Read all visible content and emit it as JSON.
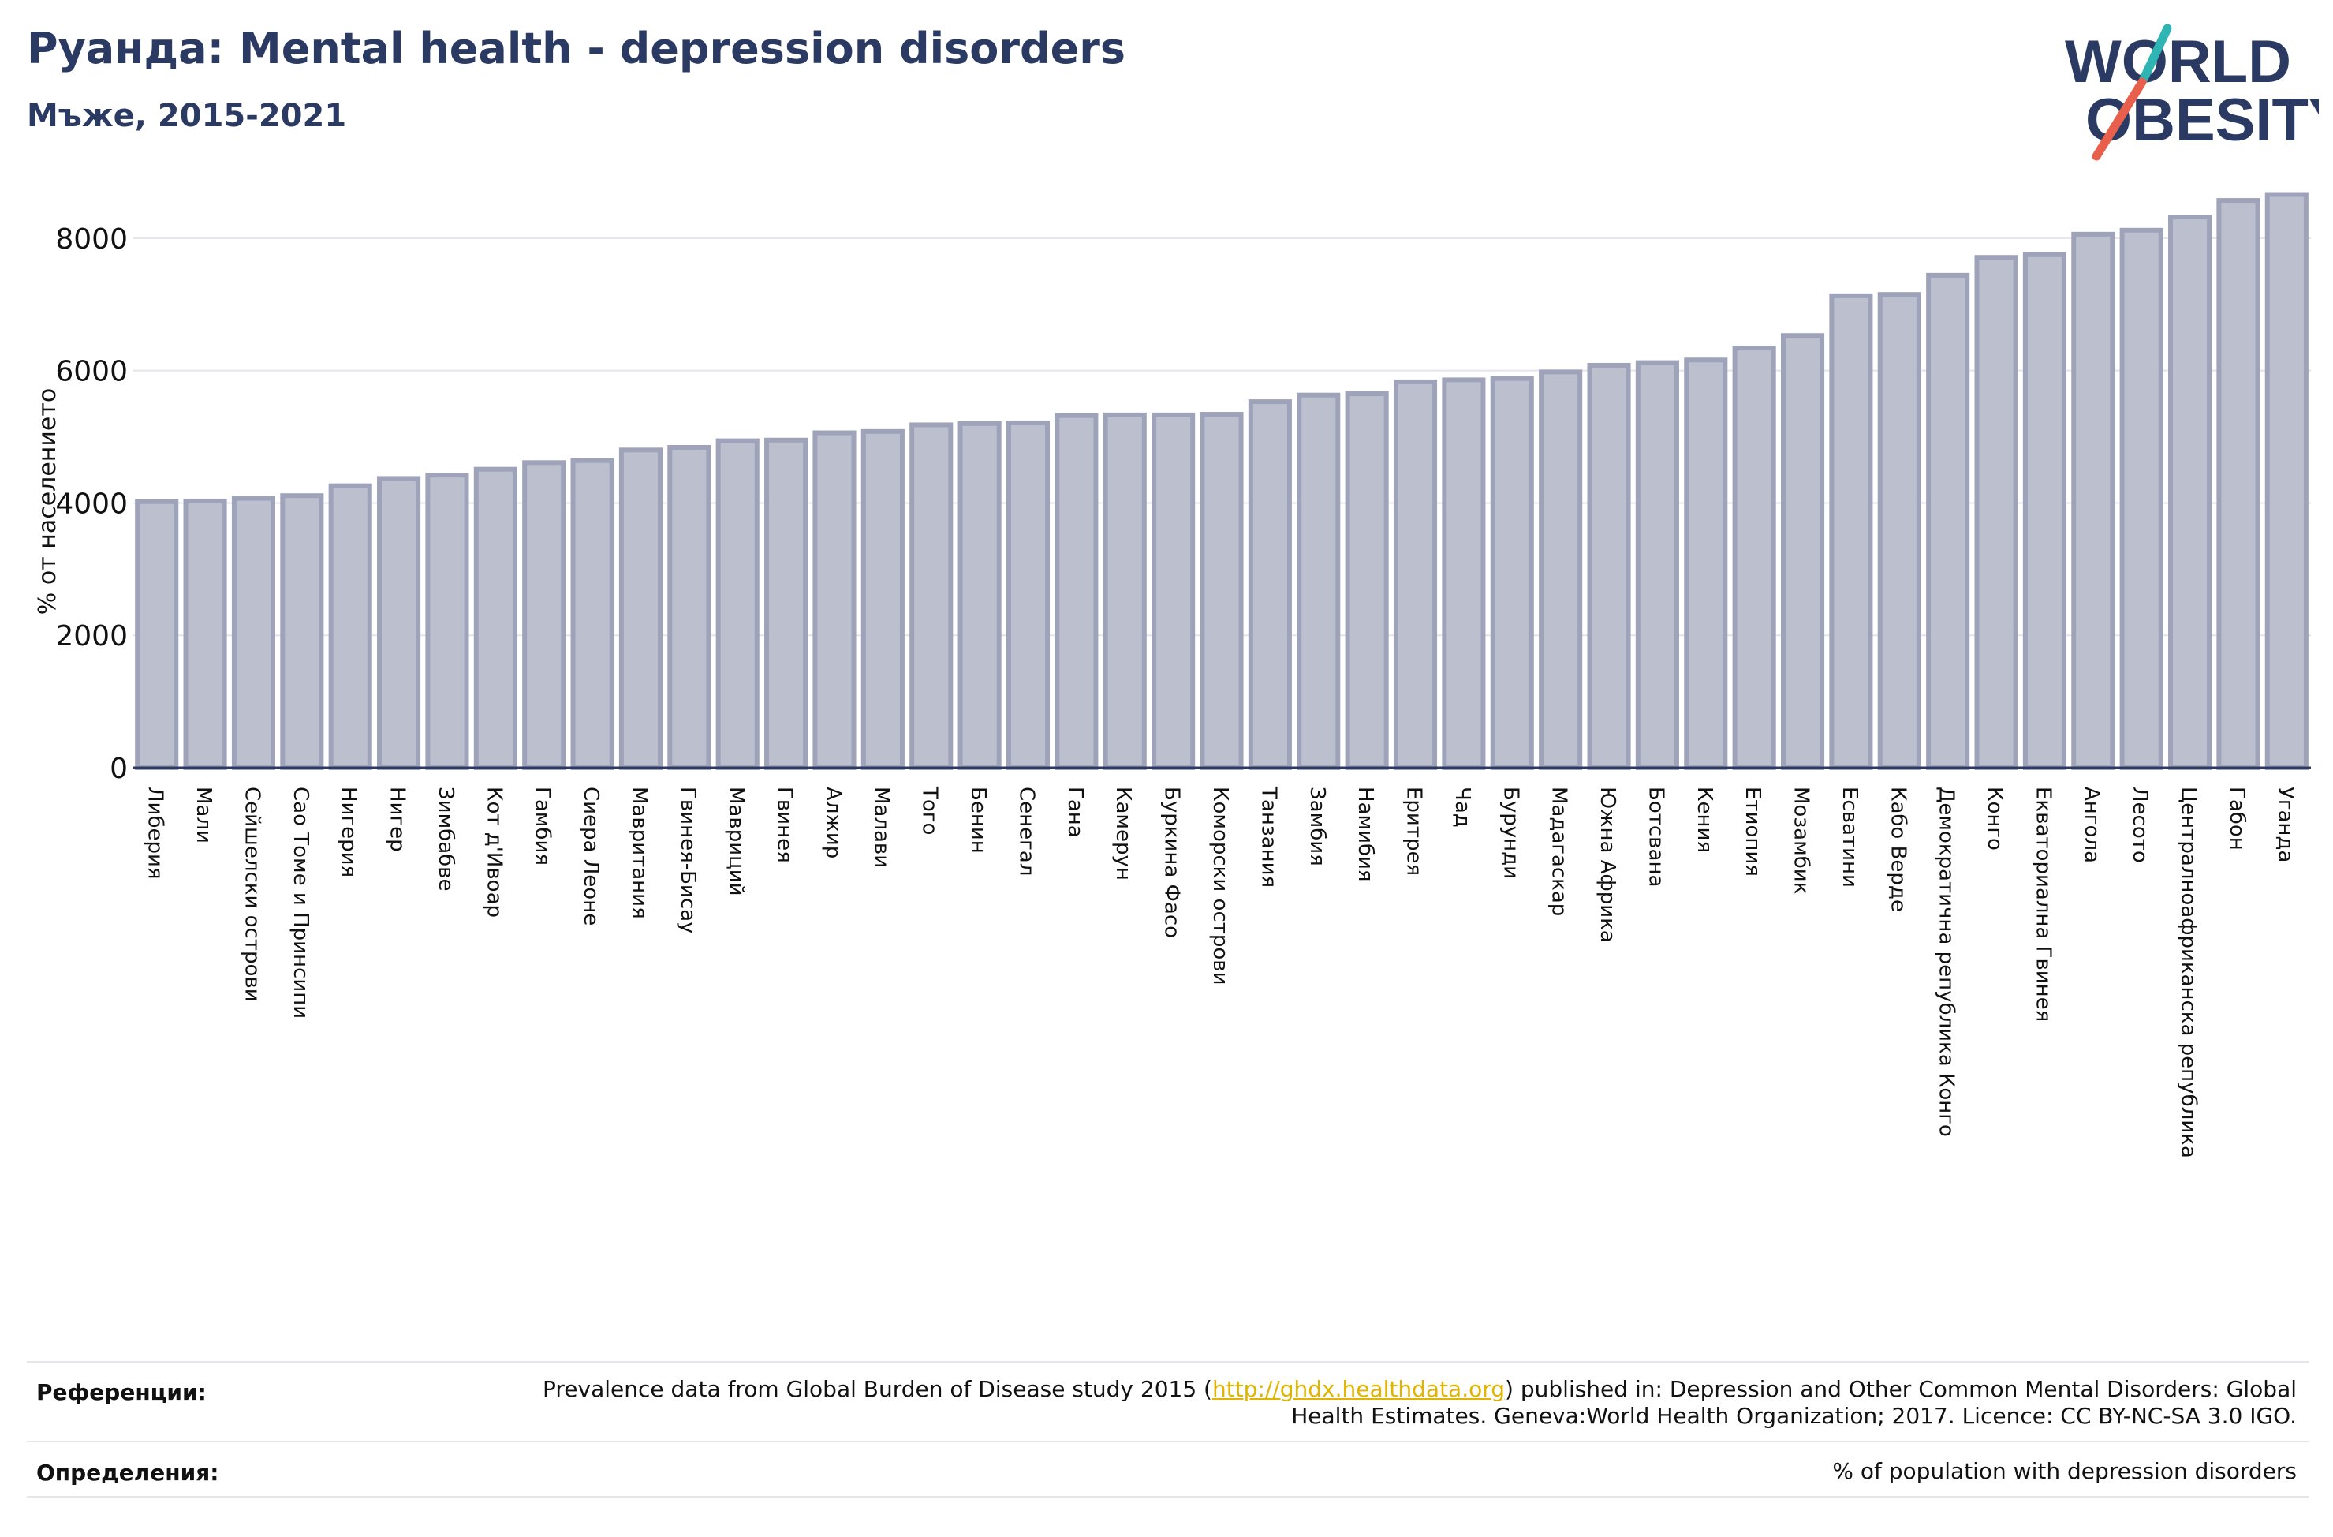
{
  "header": {
    "title": "Руанда: Mental health - depression disorders",
    "subtitle": "Мъже, 2015-2021"
  },
  "logo": {
    "line1": "WORLD",
    "line2": "OBESITY",
    "colors": {
      "navy": "#2b3a63",
      "teal": "#2fb4b4",
      "coral": "#e8604c"
    }
  },
  "chart_data": {
    "type": "bar",
    "ylabel": "% от населението",
    "ylim": [
      0,
      9000
    ],
    "yticks": [
      0,
      2000,
      4000,
      6000,
      8000
    ],
    "grid": true,
    "bar_color": "#bcc0ce",
    "bar_edge_color": "#9ea3ba",
    "categories": [
      "Либерия",
      "Мали",
      "Сейшелски острови",
      "Сао Томе и Принсипи",
      "Нигерия",
      "Нигер",
      "Зимбабве",
      "Кот д'Ивоар",
      "Гамбия",
      "Сиера Леоне",
      "Мавритания",
      "Гвинея-Бисау",
      "Мавриций",
      "Гвинея",
      "Алжир",
      "Малави",
      "Того",
      "Бенин",
      "Сенегал",
      "Гана",
      "Камерун",
      "Буркина Фасо",
      "Коморски острови",
      "Танзания",
      "Замбия",
      "Намибия",
      "Еритрея",
      "Чад",
      "Бурунди",
      "Мадагаскар",
      "Южна Африка",
      "Ботсвана",
      "Кения",
      "Етиопия",
      "Мозамбик",
      "Есватини",
      "Кабо Верде",
      "Демократична република Конго",
      "Конго",
      "Екваториална Гвинея",
      "Ангола",
      "Лесото",
      "Централноафриканска република",
      "Габон",
      "Уганда"
    ],
    "values": [
      4020,
      4030,
      4070,
      4110,
      4260,
      4370,
      4420,
      4510,
      4610,
      4640,
      4800,
      4840,
      4940,
      4950,
      5060,
      5080,
      5180,
      5200,
      5210,
      5320,
      5330,
      5330,
      5340,
      5530,
      5630,
      5650,
      5830,
      5860,
      5880,
      5980,
      6080,
      6120,
      6160,
      6340,
      6530,
      7130,
      7150,
      7440,
      7710,
      7750,
      8060,
      8120,
      8320,
      8570,
      8660
    ]
  },
  "references": {
    "label": "Референции:",
    "text_before": "Prevalence data from Global Burden of Disease study 2015 (",
    "link": "http://ghdx.healthdata.org",
    "text_after": ") published in: Depression and Other Common Mental Disorders: Global Health Estimates. Geneva:World Health Organization; 2017. Licence: CC BY-NC-SA 3.0 IGO."
  },
  "definitions": {
    "label": "Определения:",
    "text": "% of population with depression disorders"
  }
}
